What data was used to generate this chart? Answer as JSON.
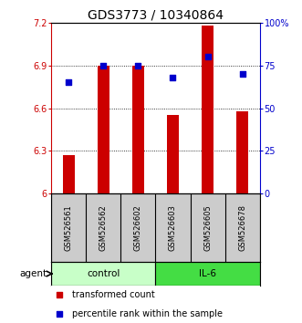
{
  "title": "GDS3773 / 10340864",
  "samples": [
    "GSM526561",
    "GSM526562",
    "GSM526602",
    "GSM526603",
    "GSM526605",
    "GSM526678"
  ],
  "bar_values": [
    6.27,
    6.9,
    6.9,
    6.55,
    7.18,
    6.58
  ],
  "bar_base": 6.0,
  "percentile_values": [
    65,
    75,
    75,
    68,
    80,
    70
  ],
  "ylim_left": [
    6.0,
    7.2
  ],
  "ylim_right": [
    0,
    100
  ],
  "yticks_left": [
    6.0,
    6.3,
    6.6,
    6.9,
    7.2
  ],
  "ytick_labels_left": [
    "6",
    "6.3",
    "6.6",
    "6.9",
    "7.2"
  ],
  "yticks_right": [
    0,
    25,
    50,
    75,
    100
  ],
  "ytick_labels_right": [
    "0",
    "25",
    "50",
    "75",
    "100%"
  ],
  "groups": [
    {
      "label": "control",
      "indices": [
        0,
        1,
        2
      ],
      "color": "#c8ffc8"
    },
    {
      "label": "IL-6",
      "indices": [
        3,
        4,
        5
      ],
      "color": "#44dd44"
    }
  ],
  "bar_color": "#cc0000",
  "dot_color": "#0000cc",
  "background_plot": "#ffffff",
  "background_sample": "#cccccc",
  "title_fontsize": 10,
  "axis_fontsize": 7,
  "sample_fontsize": 6,
  "legend_fontsize": 7,
  "agent_label": "agent",
  "left_axis_color": "#cc0000",
  "right_axis_color": "#0000cc",
  "bar_width": 0.35
}
